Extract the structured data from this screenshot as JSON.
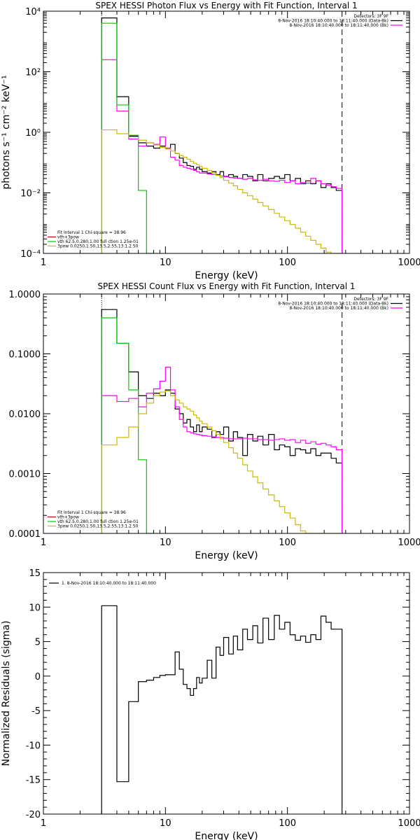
{
  "chart_data": [
    {
      "type": "line",
      "title": "SPEX HESSI Photon Flux vs Energy with Fit Function, Interval 1",
      "xlabel": "Energy (keV)",
      "ylabel": "photons s⁻¹ cm⁻² keV⁻¹",
      "xscale": "log",
      "yscale": "log",
      "xlim": [
        1,
        1000
      ],
      "ylim": [
        0.0001,
        10000
      ],
      "xticks": [
        1,
        10,
        100,
        1000
      ],
      "xtick_labels": [
        "1",
        "10",
        "100",
        "1000"
      ],
      "yticks": [
        0.0001,
        0.01,
        1,
        100,
        10000
      ],
      "ytick_labels": [
        "10⁻⁴",
        "10⁻²",
        "10⁰",
        "10²",
        "10⁴"
      ],
      "legend_top_right": [
        {
          "text": "Detectors: 3F 9F",
          "color": "#000000"
        },
        {
          "text": "8-Nov-2016 18:10:40.000 to 18:11:40.000 (Data-Bk)",
          "color": "#000000"
        },
        {
          "text": "8-Nov-2016 18:10:40.000 to 18:11:40.000 (Bk)",
          "color": "#ff00ff"
        }
      ],
      "legend_bottom_left": [
        {
          "text": "Fit Interval 1   Chi-square = 38.96",
          "color": "#000000"
        },
        {
          "text": "vth+3pow",
          "color": "#cc0000"
        },
        {
          "text": "vth 62.5,0.280,1.00  full ction 1.25e-01",
          "color": "#00cc00"
        },
        {
          "text": "3pow 0.0250,1.50,13.5,2.55,13.1,2.50",
          "color": "#ccbb00"
        }
      ],
      "markers": {
        "dotted_x": 3,
        "dashed_x": 280
      },
      "series": [
        {
          "name": "8-Nov-2016 18:10:40.000 to 18:11:40.000 (Data-Bk)",
          "color": "#000000",
          "step": true,
          "edges": [
            3,
            4,
            5,
            6,
            7,
            8,
            9,
            10,
            11,
            12,
            13,
            14,
            15,
            16,
            17,
            18,
            19,
            20,
            22,
            24,
            26,
            28,
            30,
            33,
            36,
            39,
            43,
            47,
            52,
            57,
            63,
            70,
            78,
            86,
            95,
            105,
            116,
            128,
            141,
            155,
            171,
            188,
            207,
            228,
            251,
            280
          ],
          "values": [
            6000,
            15,
            0.75,
            0.45,
            0.35,
            0.3,
            0.35,
            0.3,
            0.4,
            0.2,
            0.14,
            0.1,
            0.08,
            0.075,
            0.06,
            0.07,
            0.06,
            0.05,
            0.045,
            0.05,
            0.04,
            0.05,
            0.035,
            0.04,
            0.035,
            0.03,
            0.04,
            0.035,
            0.025,
            0.04,
            0.025,
            0.03,
            0.035,
            0.03,
            0.04,
            0.025,
            0.03,
            0.02,
            0.025,
            0.02,
            0.025,
            0.015,
            0.02,
            0.015,
            0.012
          ]
        },
        {
          "name": "8-Nov-2016 18:10:40.000 to 18:11:40.000 (Bk)",
          "color": "#ff00ff",
          "step": true,
          "edges": [
            3,
            4,
            5,
            6,
            7,
            8,
            9,
            10,
            11,
            12,
            13,
            14,
            15,
            16,
            17,
            18,
            19,
            20,
            22,
            24,
            26,
            28,
            30,
            33,
            36,
            39,
            43,
            47,
            52,
            57,
            63,
            70,
            78,
            86,
            95,
            105,
            116,
            128,
            141,
            155,
            171,
            188,
            207,
            228,
            251,
            280
          ],
          "values": [
            250,
            5,
            0.6,
            0.35,
            0.45,
            0.4,
            0.7,
            0.3,
            0.15,
            0.12,
            0.08,
            0.07,
            0.065,
            0.06,
            0.055,
            0.05,
            0.045,
            0.045,
            0.042,
            0.04,
            0.038,
            0.036,
            0.034,
            0.032,
            0.031,
            0.03,
            0.028,
            0.03,
            0.027,
            0.026,
            0.028,
            0.025,
            0.024,
            0.026,
            0.022,
            0.025,
            0.02,
            0.022,
            0.021,
            0.03,
            0.025,
            0.02,
            0.018,
            0.016,
            0.014
          ]
        },
        {
          "name": "vth 62.5,0.280,1.00  full ction 1.25e-01",
          "color": "#00cc00",
          "step": true,
          "edges": [
            3,
            4,
            5,
            6,
            7,
            8
          ],
          "values": [
            4000,
            8,
            0.8,
            0.012,
            0.0001
          ]
        },
        {
          "name": "3pow 0.0250,1.50,13.5,2.55,13.1,2.50",
          "color": "#ccbb00",
          "step": true,
          "edges": [
            3,
            4,
            5,
            6,
            7,
            8,
            9,
            10,
            11,
            12,
            13,
            14,
            15,
            16,
            17,
            18,
            19,
            20,
            22,
            24,
            26,
            28,
            30,
            33,
            36,
            39,
            43,
            47,
            52,
            57,
            63,
            70,
            78,
            86,
            95,
            105,
            116,
            128,
            141,
            155,
            171,
            188,
            207,
            228,
            251,
            280
          ],
          "values": [
            1.2,
            0.9,
            0.7,
            0.55,
            0.45,
            0.38,
            0.32,
            0.28,
            0.24,
            0.2,
            0.17,
            0.15,
            0.13,
            0.11,
            0.095,
            0.085,
            0.075,
            0.065,
            0.055,
            0.045,
            0.038,
            0.032,
            0.026,
            0.021,
            0.017,
            0.013,
            0.01,
            0.008,
            0.0062,
            0.0048,
            0.0037,
            0.0028,
            0.0021,
            0.0016,
            0.0012,
            0.0009,
            0.00068,
            0.0005,
            0.00037,
            0.00027,
            0.0002,
            0.00015,
            0.00011,
            0.0001,
            0.0001
          ]
        }
      ]
    },
    {
      "type": "line",
      "title": "SPEX HESSI Count Flux vs Energy with Fit Function, Interval 1",
      "xlabel": "Energy (keV)",
      "ylabel": "",
      "xscale": "log",
      "yscale": "log",
      "xlim": [
        1,
        1000
      ],
      "ylim": [
        0.0001,
        1
      ],
      "xticks": [
        1,
        10,
        100,
        1000
      ],
      "xtick_labels": [
        "1",
        "10",
        "100",
        "1000"
      ],
      "yticks": [
        0.0001,
        0.001,
        0.01,
        0.1,
        1
      ],
      "ytick_labels": [
        "0.0001",
        "0.0010",
        "0.0100",
        "0.1000",
        "1.0000"
      ],
      "legend_top_right": [
        {
          "text": "Detectors: 3F 9F",
          "color": "#000000"
        },
        {
          "text": "8-Nov-2016 18:10:40.000 to 18:11:40.000 (Data-Bk)",
          "color": "#000000"
        },
        {
          "text": "8-Nov-2016 18:10:40.000 to 18:11:40.000 (Bk)",
          "color": "#ff00ff"
        }
      ],
      "legend_bottom_left": [
        {
          "text": "Fit Interval 1   Chi-square = 38.96",
          "color": "#000000"
        },
        {
          "text": "vth+3pow",
          "color": "#cc0000"
        },
        {
          "text": "vth 62.5,0.280,1.00  full ction 1.25e-01",
          "color": "#00cc00"
        },
        {
          "text": "3pow 0.0250,1.50,13.5,2.55,13.1,2.50",
          "color": "#ccbb00"
        }
      ],
      "markers": {
        "dotted_x": 3,
        "dashed_x": 280
      },
      "series": [
        {
          "name": "8-Nov-2016 18:10:40.000 to 18:11:40.000 (Data-Bk)",
          "color": "#000000",
          "step": true,
          "edges": [
            3,
            4,
            5,
            6,
            7,
            8,
            9,
            10,
            11,
            12,
            13,
            14,
            15,
            16,
            17,
            18,
            19,
            20,
            22,
            24,
            26,
            28,
            30,
            33,
            36,
            39,
            43,
            47,
            52,
            57,
            63,
            70,
            78,
            86,
            95,
            105,
            116,
            128,
            141,
            155,
            171,
            188,
            207,
            228,
            251,
            280
          ],
          "values": [
            0.55,
            0.15,
            0.05,
            0.02,
            0.018,
            0.022,
            0.02,
            0.025,
            0.022,
            0.012,
            0.01,
            0.007,
            0.008,
            0.006,
            0.005,
            0.0065,
            0.005,
            0.006,
            0.0055,
            0.004,
            0.005,
            0.0045,
            0.006,
            0.0035,
            0.005,
            0.004,
            0.002,
            0.0045,
            0.0035,
            0.0042,
            0.003,
            0.0045,
            0.0025,
            0.003,
            0.0028,
            0.002,
            0.0026,
            0.0025,
            0.0022,
            0.0026,
            0.002,
            0.0022,
            0.0022,
            0.0018,
            0.0015
          ]
        },
        {
          "name": "8-Nov-2016 18:10:40.000 to 18:11:40.000 (Bk)",
          "color": "#ff00ff",
          "step": true,
          "edges": [
            3,
            4,
            5,
            6,
            7,
            8,
            9,
            10,
            11,
            12,
            13,
            14,
            15,
            16,
            17,
            18,
            19,
            20,
            22,
            24,
            26,
            28,
            30,
            33,
            36,
            39,
            43,
            47,
            52,
            57,
            63,
            70,
            78,
            86,
            95,
            105,
            116,
            128,
            141,
            155,
            171,
            188,
            207,
            228,
            251,
            280
          ],
          "values": [
            0.02,
            0.016,
            0.018,
            0.013,
            0.022,
            0.026,
            0.035,
            0.06,
            0.025,
            0.013,
            0.008,
            0.006,
            0.005,
            0.0048,
            0.0046,
            0.0045,
            0.0044,
            0.0043,
            0.0042,
            0.0041,
            0.004,
            0.004,
            0.0039,
            0.0038,
            0.0038,
            0.0038,
            0.0039,
            0.0038,
            0.0038,
            0.0037,
            0.0037,
            0.0036,
            0.0037,
            0.0038,
            0.0036,
            0.0037,
            0.0033,
            0.0036,
            0.0032,
            0.0034,
            0.0031,
            0.0032,
            0.003,
            0.0028,
            0.0025
          ]
        },
        {
          "name": "vth 62.5,0.280,1.00  full ction 1.25e-01",
          "color": "#00cc00",
          "step": true,
          "edges": [
            3,
            4,
            5,
            6,
            7,
            8
          ],
          "values": [
            0.4,
            0.15,
            0.025,
            0.0017,
            0.0001
          ]
        },
        {
          "name": "3pow 0.0250,1.50,13.5,2.55,13.1,2.50",
          "color": "#ccbb00",
          "step": true,
          "edges": [
            3,
            4,
            5,
            6,
            7,
            8,
            9,
            10,
            11,
            12,
            13,
            14,
            15,
            16,
            17,
            18,
            19,
            20,
            22,
            24,
            26,
            28,
            30,
            33,
            36,
            39,
            43,
            47,
            52,
            57,
            63,
            70,
            78,
            86,
            95,
            105,
            116,
            128,
            141,
            155,
            171,
            188,
            207,
            228,
            251,
            280
          ],
          "values": [
            0.003,
            0.004,
            0.006,
            0.01,
            0.015,
            0.02,
            0.023,
            0.024,
            0.02,
            0.017,
            0.015,
            0.013,
            0.012,
            0.011,
            0.0095,
            0.0085,
            0.0075,
            0.0068,
            0.006,
            0.0052,
            0.0045,
            0.0038,
            0.0033,
            0.0027,
            0.0022,
            0.0018,
            0.0014,
            0.0011,
            0.00088,
            0.0007,
            0.00055,
            0.00044,
            0.00035,
            0.00028,
            0.00022,
            0.00018,
            0.00014,
            0.00011,
            0.0001,
            0.0001,
            0.0001,
            0.0001,
            0.0001,
            0.0001,
            0.0001
          ]
        }
      ]
    },
    {
      "type": "line",
      "title": "",
      "xlabel": "Energy (keV)",
      "ylabel": "Normalized Residuals (sigma)",
      "xscale": "log",
      "yscale": "linear",
      "xlim": [
        1,
        1000
      ],
      "ylim": [
        -20,
        15
      ],
      "xticks": [
        1,
        10,
        100,
        1000
      ],
      "xtick_labels": [
        "1",
        "10",
        "100",
        "1000"
      ],
      "yticks": [
        -20,
        -15,
        -10,
        -5,
        0,
        5,
        10,
        15
      ],
      "ytick_labels": [
        "-20",
        "-15",
        "-10",
        "-5",
        "0",
        "5",
        "10",
        "15"
      ],
      "legend": [
        {
          "text": "1.  8-Nov-2016 18:10:40.000 to 18:11:40.000",
          "color": "#000000"
        }
      ],
      "series": [
        {
          "name": "1.  8-Nov-2016 18:10:40.000 to 18:11:40.000",
          "color": "#000000",
          "step": true,
          "closed_to_bottom": true,
          "edges": [
            3,
            4,
            5,
            6,
            7,
            8,
            9,
            10,
            11,
            12,
            13,
            14,
            15,
            16,
            17,
            18,
            19,
            20,
            22,
            24,
            26,
            28,
            30,
            33,
            36,
            39,
            43,
            47,
            52,
            57,
            63,
            70,
            78,
            86,
            95,
            105,
            116,
            128,
            141,
            155,
            171,
            188,
            207,
            228,
            251,
            280
          ],
          "values": [
            10.2,
            -15.3,
            -3.7,
            -0.8,
            -0.6,
            -0.2,
            0.1,
            0.2,
            0.2,
            3.5,
            1.0,
            -1.2,
            -1.8,
            -2.8,
            -1.8,
            -0.2,
            -1.0,
            -0.3,
            2.3,
            -0.3,
            4.2,
            3.0,
            5.6,
            3.2,
            5.8,
            3.8,
            6.8,
            5.3,
            7.3,
            4.8,
            8.4,
            5.3,
            8.8,
            6.8,
            7.8,
            6.0,
            5.2,
            5.8,
            4.9,
            6.0,
            5.3,
            8.7,
            7.8,
            6.8,
            6.8
          ]
        }
      ]
    }
  ]
}
